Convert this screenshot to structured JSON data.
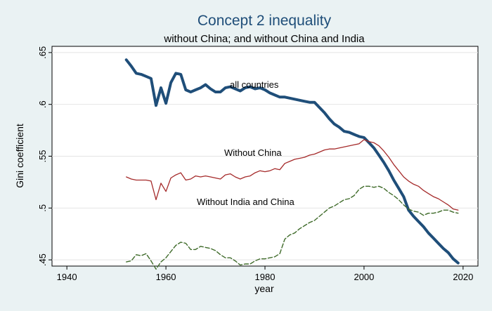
{
  "chart_data": {
    "type": "line",
    "title": "Concept 2 inequality",
    "subtitle": "without China; and without China and India",
    "xlabel": "year",
    "ylabel": "Gini coefficient",
    "xlim": [
      1937,
      2023
    ],
    "ylim": [
      0.444,
      0.656
    ],
    "xticks": [
      1940,
      1960,
      1980,
      2000,
      2020
    ],
    "xtick_labels": [
      "1940",
      "1960",
      "1980",
      "2000",
      "2020"
    ],
    "yticks": [
      0.45,
      0.5,
      0.55,
      0.6,
      0.65
    ],
    "ytick_labels": [
      ".45",
      ".5",
      ".55",
      ".6",
      ".65"
    ],
    "grid": "horizontal",
    "series": [
      {
        "name": "all countries",
        "color": "#1f4e79",
        "style": "solid-thick",
        "x": [
          1952,
          1953,
          1954,
          1955,
          1956,
          1957,
          1958,
          1959,
          1960,
          1961,
          1962,
          1963,
          1964,
          1965,
          1966,
          1967,
          1968,
          1969,
          1970,
          1971,
          1972,
          1973,
          1974,
          1975,
          1976,
          1977,
          1978,
          1979,
          1980,
          1981,
          1982,
          1983,
          1984,
          1985,
          1986,
          1987,
          1988,
          1989,
          1990,
          1991,
          1992,
          1993,
          1994,
          1995,
          1996,
          1997,
          1998,
          1999,
          2000,
          2001,
          2002,
          2003,
          2004,
          2005,
          2006,
          2007,
          2008,
          2009,
          2010,
          2011,
          2012,
          2013,
          2014,
          2015,
          2016,
          2017,
          2018,
          2019
        ],
        "y": [
          0.643,
          0.637,
          0.63,
          0.629,
          0.627,
          0.625,
          0.599,
          0.616,
          0.601,
          0.621,
          0.63,
          0.629,
          0.614,
          0.612,
          0.614,
          0.616,
          0.619,
          0.615,
          0.612,
          0.612,
          0.616,
          0.617,
          0.615,
          0.613,
          0.616,
          0.617,
          0.615,
          0.616,
          0.614,
          0.611,
          0.609,
          0.607,
          0.607,
          0.606,
          0.605,
          0.604,
          0.603,
          0.602,
          0.602,
          0.597,
          0.592,
          0.586,
          0.581,
          0.578,
          0.574,
          0.573,
          0.571,
          0.569,
          0.568,
          0.563,
          0.558,
          0.551,
          0.544,
          0.536,
          0.527,
          0.519,
          0.511,
          0.498,
          0.492,
          0.487,
          0.482,
          0.476,
          0.471,
          0.466,
          0.461,
          0.457,
          0.451,
          0.447
        ]
      },
      {
        "name": "Without China",
        "color": "#a52a2a",
        "style": "solid-thin",
        "x": [
          1952,
          1953,
          1954,
          1955,
          1956,
          1957,
          1958,
          1959,
          1960,
          1961,
          1962,
          1963,
          1964,
          1965,
          1966,
          1967,
          1968,
          1969,
          1970,
          1971,
          1972,
          1973,
          1974,
          1975,
          1976,
          1977,
          1978,
          1979,
          1980,
          1981,
          1982,
          1983,
          1984,
          1985,
          1986,
          1987,
          1988,
          1989,
          1990,
          1991,
          1992,
          1993,
          1994,
          1995,
          1996,
          1997,
          1998,
          1999,
          2000,
          2001,
          2002,
          2003,
          2004,
          2005,
          2006,
          2007,
          2008,
          2009,
          2010,
          2011,
          2012,
          2013,
          2014,
          2015,
          2016,
          2017,
          2018,
          2019
        ],
        "y": [
          0.53,
          0.528,
          0.527,
          0.527,
          0.527,
          0.526,
          0.508,
          0.524,
          0.516,
          0.529,
          0.532,
          0.534,
          0.527,
          0.528,
          0.531,
          0.53,
          0.531,
          0.53,
          0.529,
          0.528,
          0.532,
          0.533,
          0.53,
          0.528,
          0.53,
          0.531,
          0.534,
          0.536,
          0.535,
          0.536,
          0.538,
          0.537,
          0.543,
          0.545,
          0.547,
          0.548,
          0.549,
          0.551,
          0.552,
          0.554,
          0.556,
          0.557,
          0.557,
          0.558,
          0.559,
          0.56,
          0.561,
          0.562,
          0.566,
          0.564,
          0.563,
          0.56,
          0.555,
          0.549,
          0.542,
          0.536,
          0.53,
          0.526,
          0.523,
          0.521,
          0.517,
          0.514,
          0.511,
          0.509,
          0.506,
          0.503,
          0.499,
          0.498
        ]
      },
      {
        "name": "Without India and China",
        "color": "#3f6b2a",
        "style": "dashed",
        "x": [
          1952,
          1953,
          1954,
          1955,
          1956,
          1957,
          1958,
          1959,
          1960,
          1961,
          1962,
          1963,
          1964,
          1965,
          1966,
          1967,
          1968,
          1969,
          1970,
          1971,
          1972,
          1973,
          1974,
          1975,
          1976,
          1977,
          1978,
          1979,
          1980,
          1981,
          1982,
          1983,
          1984,
          1985,
          1986,
          1987,
          1988,
          1989,
          1990,
          1991,
          1992,
          1993,
          1994,
          1995,
          1996,
          1997,
          1998,
          1999,
          2000,
          2001,
          2002,
          2003,
          2004,
          2005,
          2006,
          2007,
          2008,
          2009,
          2010,
          2011,
          2012,
          2013,
          2014,
          2015,
          2016,
          2017,
          2018,
          2019
        ],
        "y": [
          0.448,
          0.449,
          0.455,
          0.454,
          0.456,
          0.449,
          0.441,
          0.448,
          0.452,
          0.458,
          0.464,
          0.467,
          0.466,
          0.46,
          0.46,
          0.463,
          0.462,
          0.461,
          0.459,
          0.455,
          0.452,
          0.452,
          0.449,
          0.445,
          0.446,
          0.446,
          0.449,
          0.451,
          0.451,
          0.452,
          0.453,
          0.456,
          0.47,
          0.474,
          0.476,
          0.48,
          0.483,
          0.486,
          0.488,
          0.492,
          0.496,
          0.5,
          0.502,
          0.505,
          0.508,
          0.509,
          0.512,
          0.518,
          0.521,
          0.521,
          0.52,
          0.521,
          0.519,
          0.515,
          0.512,
          0.508,
          0.503,
          0.499,
          0.497,
          0.496,
          0.493,
          0.495,
          0.495,
          0.496,
          0.498,
          0.498,
          0.496,
          0.495
        ]
      }
    ]
  }
}
